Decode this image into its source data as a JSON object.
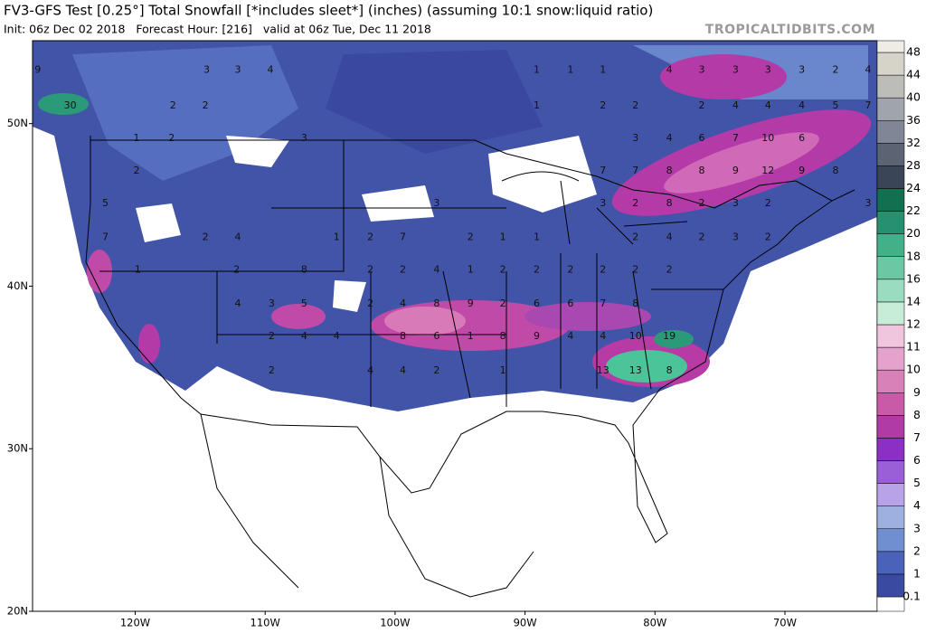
{
  "map": {
    "title": "FV3-GFS Test [0.25°] Total Snowfall [*includes sleet*] (inches) (assuming 10:1 snow:liquid ratio)",
    "subtitle": "Init: 06z Dec 02 2018   Forecast Hour: [216]   valid at 06z Tue, Dec 11 2018",
    "site": "TROPICALTIDBITS.COM",
    "lon_range": [
      -127.9,
      -62.9
    ],
    "lat_range": [
      20,
      55.1
    ],
    "lon_ticks": [
      {
        "value": -120,
        "label": "120W"
      },
      {
        "value": -110,
        "label": "110W"
      },
      {
        "value": -100,
        "label": "100W"
      },
      {
        "value": -90,
        "label": "90W"
      },
      {
        "value": -80,
        "label": "80W"
      },
      {
        "value": -70,
        "label": "70W"
      }
    ],
    "lat_ticks": [
      {
        "value": 50,
        "label": "50N"
      },
      {
        "value": 40,
        "label": "40N"
      },
      {
        "value": 30,
        "label": "30N"
      },
      {
        "value": 20,
        "label": "20N"
      }
    ],
    "colorbar": {
      "levels": [
        0.1,
        1,
        2,
        3,
        4,
        5,
        6,
        7,
        8,
        9,
        10,
        11,
        12,
        14,
        16,
        18,
        20,
        22,
        24,
        28,
        32,
        36,
        40,
        44,
        48
      ],
      "colors": [
        "#3a4aa0",
        "#4a62b8",
        "#6f8fd0",
        "#9db0e0",
        "#b8a3e8",
        "#9a5fd6",
        "#8c2fc4",
        "#b03aa6",
        "#c85aa8",
        "#d880b8",
        "#e4a2cc",
        "#efc6de",
        "#c7ecd8",
        "#99dcc0",
        "#6cc8a4",
        "#42b088",
        "#269070",
        "#127050",
        "#3a4658",
        "#5c6474",
        "#808696",
        "#a0a4ac",
        "#bcbdb8",
        "#d6d4c8",
        "#eeece4"
      ]
    },
    "labels": [
      {
        "lon": -127.5,
        "lat": 53.3,
        "value": 9
      },
      {
        "lon": -125.0,
        "lat": 51.1,
        "value": 30
      },
      {
        "lon": -114.5,
        "lat": 53.3,
        "value": 3
      },
      {
        "lon": -112.1,
        "lat": 53.3,
        "value": 3
      },
      {
        "lon": -109.6,
        "lat": 53.3,
        "value": 4
      },
      {
        "lon": -117.1,
        "lat": 51.1,
        "value": 2
      },
      {
        "lon": -114.6,
        "lat": 51.1,
        "value": 2
      },
      {
        "lon": -119.9,
        "lat": 49.1,
        "value": 1
      },
      {
        "lon": -117.2,
        "lat": 49.1,
        "value": 2
      },
      {
        "lon": -107.0,
        "lat": 49.1,
        "value": 3
      },
      {
        "lon": -119.9,
        "lat": 47.1,
        "value": 2
      },
      {
        "lon": -122.3,
        "lat": 45.1,
        "value": 5
      },
      {
        "lon": -122.3,
        "lat": 43.0,
        "value": 7
      },
      {
        "lon": -114.6,
        "lat": 43.0,
        "value": 2
      },
      {
        "lon": -112.1,
        "lat": 43.0,
        "value": 4
      },
      {
        "lon": -119.8,
        "lat": 41.0,
        "value": 1
      },
      {
        "lon": -112.2,
        "lat": 41.0,
        "value": 2
      },
      {
        "lon": -107.0,
        "lat": 41.0,
        "value": 8
      },
      {
        "lon": -112.1,
        "lat": 38.9,
        "value": 4
      },
      {
        "lon": -109.5,
        "lat": 38.9,
        "value": 3
      },
      {
        "lon": -107.0,
        "lat": 38.9,
        "value": 5
      },
      {
        "lon": -109.5,
        "lat": 36.9,
        "value": 2
      },
      {
        "lon": -107.0,
        "lat": 36.9,
        "value": 4
      },
      {
        "lon": -104.5,
        "lat": 36.9,
        "value": 4
      },
      {
        "lon": -109.5,
        "lat": 34.8,
        "value": 2
      },
      {
        "lon": -101.9,
        "lat": 34.8,
        "value": 4
      },
      {
        "lon": -99.4,
        "lat": 34.8,
        "value": 4
      },
      {
        "lon": -96.8,
        "lat": 34.8,
        "value": 2
      },
      {
        "lon": -104.5,
        "lat": 43.0,
        "value": 1
      },
      {
        "lon": -101.9,
        "lat": 43.0,
        "value": 2
      },
      {
        "lon": -99.4,
        "lat": 43.0,
        "value": 7
      },
      {
        "lon": -96.8,
        "lat": 45.1,
        "value": 3
      },
      {
        "lon": -94.2,
        "lat": 43.0,
        "value": 2
      },
      {
        "lon": -91.7,
        "lat": 43.0,
        "value": 1
      },
      {
        "lon": -89.1,
        "lat": 43.0,
        "value": 1
      },
      {
        "lon": -101.9,
        "lat": 41.0,
        "value": 2
      },
      {
        "lon": -99.4,
        "lat": 41.0,
        "value": 2
      },
      {
        "lon": -96.8,
        "lat": 41.0,
        "value": 4
      },
      {
        "lon": -94.2,
        "lat": 41.0,
        "value": 1
      },
      {
        "lon": -91.7,
        "lat": 41.0,
        "value": 2
      },
      {
        "lon": -89.1,
        "lat": 41.0,
        "value": 2
      },
      {
        "lon": -86.5,
        "lat": 41.0,
        "value": 2
      },
      {
        "lon": -84.0,
        "lat": 41.0,
        "value": 2
      },
      {
        "lon": -81.5,
        "lat": 41.0,
        "value": 2
      },
      {
        "lon": -78.9,
        "lat": 41.0,
        "value": 2
      },
      {
        "lon": -101.9,
        "lat": 38.9,
        "value": 2
      },
      {
        "lon": -99.4,
        "lat": 38.9,
        "value": 4
      },
      {
        "lon": -96.8,
        "lat": 38.9,
        "value": 8
      },
      {
        "lon": -94.2,
        "lat": 38.9,
        "value": 9
      },
      {
        "lon": -91.7,
        "lat": 38.9,
        "value": 2
      },
      {
        "lon": -89.1,
        "lat": 38.9,
        "value": 6
      },
      {
        "lon": -86.5,
        "lat": 38.9,
        "value": 6
      },
      {
        "lon": -84.0,
        "lat": 38.9,
        "value": 7
      },
      {
        "lon": -81.5,
        "lat": 38.9,
        "value": 8
      },
      {
        "lon": -99.4,
        "lat": 36.9,
        "value": 8
      },
      {
        "lon": -96.8,
        "lat": 36.9,
        "value": 6
      },
      {
        "lon": -94.2,
        "lat": 36.9,
        "value": 1
      },
      {
        "lon": -91.7,
        "lat": 36.9,
        "value": 8
      },
      {
        "lon": -89.1,
        "lat": 36.9,
        "value": 9
      },
      {
        "lon": -86.5,
        "lat": 36.9,
        "value": 4
      },
      {
        "lon": -84.0,
        "lat": 36.9,
        "value": 4
      },
      {
        "lon": -81.5,
        "lat": 36.9,
        "value": 10
      },
      {
        "lon": -78.9,
        "lat": 36.9,
        "value": 19
      },
      {
        "lon": -91.7,
        "lat": 34.8,
        "value": 1
      },
      {
        "lon": -84.0,
        "lat": 34.8,
        "value": 13
      },
      {
        "lon": -81.5,
        "lat": 34.8,
        "value": 13
      },
      {
        "lon": -78.9,
        "lat": 34.8,
        "value": 8
      },
      {
        "lon": -89.1,
        "lat": 53.3,
        "value": 1
      },
      {
        "lon": -86.5,
        "lat": 53.3,
        "value": 1
      },
      {
        "lon": -84.0,
        "lat": 53.3,
        "value": 1
      },
      {
        "lon": -78.9,
        "lat": 53.3,
        "value": 4
      },
      {
        "lon": -76.4,
        "lat": 53.3,
        "value": 3
      },
      {
        "lon": -73.8,
        "lat": 53.3,
        "value": 3
      },
      {
        "lon": -71.3,
        "lat": 53.3,
        "value": 3
      },
      {
        "lon": -68.7,
        "lat": 53.3,
        "value": 3
      },
      {
        "lon": -66.1,
        "lat": 53.3,
        "value": 2
      },
      {
        "lon": -63.6,
        "lat": 53.3,
        "value": 4
      },
      {
        "lon": -89.1,
        "lat": 51.1,
        "value": 1
      },
      {
        "lon": -84.0,
        "lat": 51.1,
        "value": 2
      },
      {
        "lon": -81.5,
        "lat": 51.1,
        "value": 2
      },
      {
        "lon": -76.4,
        "lat": 51.1,
        "value": 2
      },
      {
        "lon": -73.8,
        "lat": 51.1,
        "value": 4
      },
      {
        "lon": -71.3,
        "lat": 51.1,
        "value": 4
      },
      {
        "lon": -68.7,
        "lat": 51.1,
        "value": 4
      },
      {
        "lon": -66.1,
        "lat": 51.1,
        "value": 5
      },
      {
        "lon": -63.6,
        "lat": 51.1,
        "value": 7
      },
      {
        "lon": -81.5,
        "lat": 49.1,
        "value": 3
      },
      {
        "lon": -78.9,
        "lat": 49.1,
        "value": 4
      },
      {
        "lon": -76.4,
        "lat": 49.1,
        "value": 6
      },
      {
        "lon": -73.8,
        "lat": 49.1,
        "value": 7
      },
      {
        "lon": -71.3,
        "lat": 49.1,
        "value": 10
      },
      {
        "lon": -68.7,
        "lat": 49.1,
        "value": 6
      },
      {
        "lon": -84.0,
        "lat": 47.1,
        "value": 7
      },
      {
        "lon": -81.5,
        "lat": 47.1,
        "value": 7
      },
      {
        "lon": -78.9,
        "lat": 47.1,
        "value": 8
      },
      {
        "lon": -76.4,
        "lat": 47.1,
        "value": 8
      },
      {
        "lon": -73.8,
        "lat": 47.1,
        "value": 9
      },
      {
        "lon": -71.3,
        "lat": 47.1,
        "value": 12
      },
      {
        "lon": -68.7,
        "lat": 47.1,
        "value": 9
      },
      {
        "lon": -66.1,
        "lat": 47.1,
        "value": 8
      },
      {
        "lon": -84.0,
        "lat": 45.1,
        "value": 3
      },
      {
        "lon": -81.5,
        "lat": 45.1,
        "value": 2
      },
      {
        "lon": -78.9,
        "lat": 45.1,
        "value": 8
      },
      {
        "lon": -76.4,
        "lat": 45.1,
        "value": 2
      },
      {
        "lon": -73.8,
        "lat": 45.1,
        "value": 3
      },
      {
        "lon": -71.3,
        "lat": 45.1,
        "value": 2
      },
      {
        "lon": -63.6,
        "lat": 45.1,
        "value": 3
      },
      {
        "lon": -81.5,
        "lat": 43.0,
        "value": 2
      },
      {
        "lon": -78.9,
        "lat": 43.0,
        "value": 4
      },
      {
        "lon": -76.4,
        "lat": 43.0,
        "value": 2
      },
      {
        "lon": -73.8,
        "lat": 43.0,
        "value": 3
      },
      {
        "lon": -71.3,
        "lat": 43.0,
        "value": 2
      }
    ]
  }
}
